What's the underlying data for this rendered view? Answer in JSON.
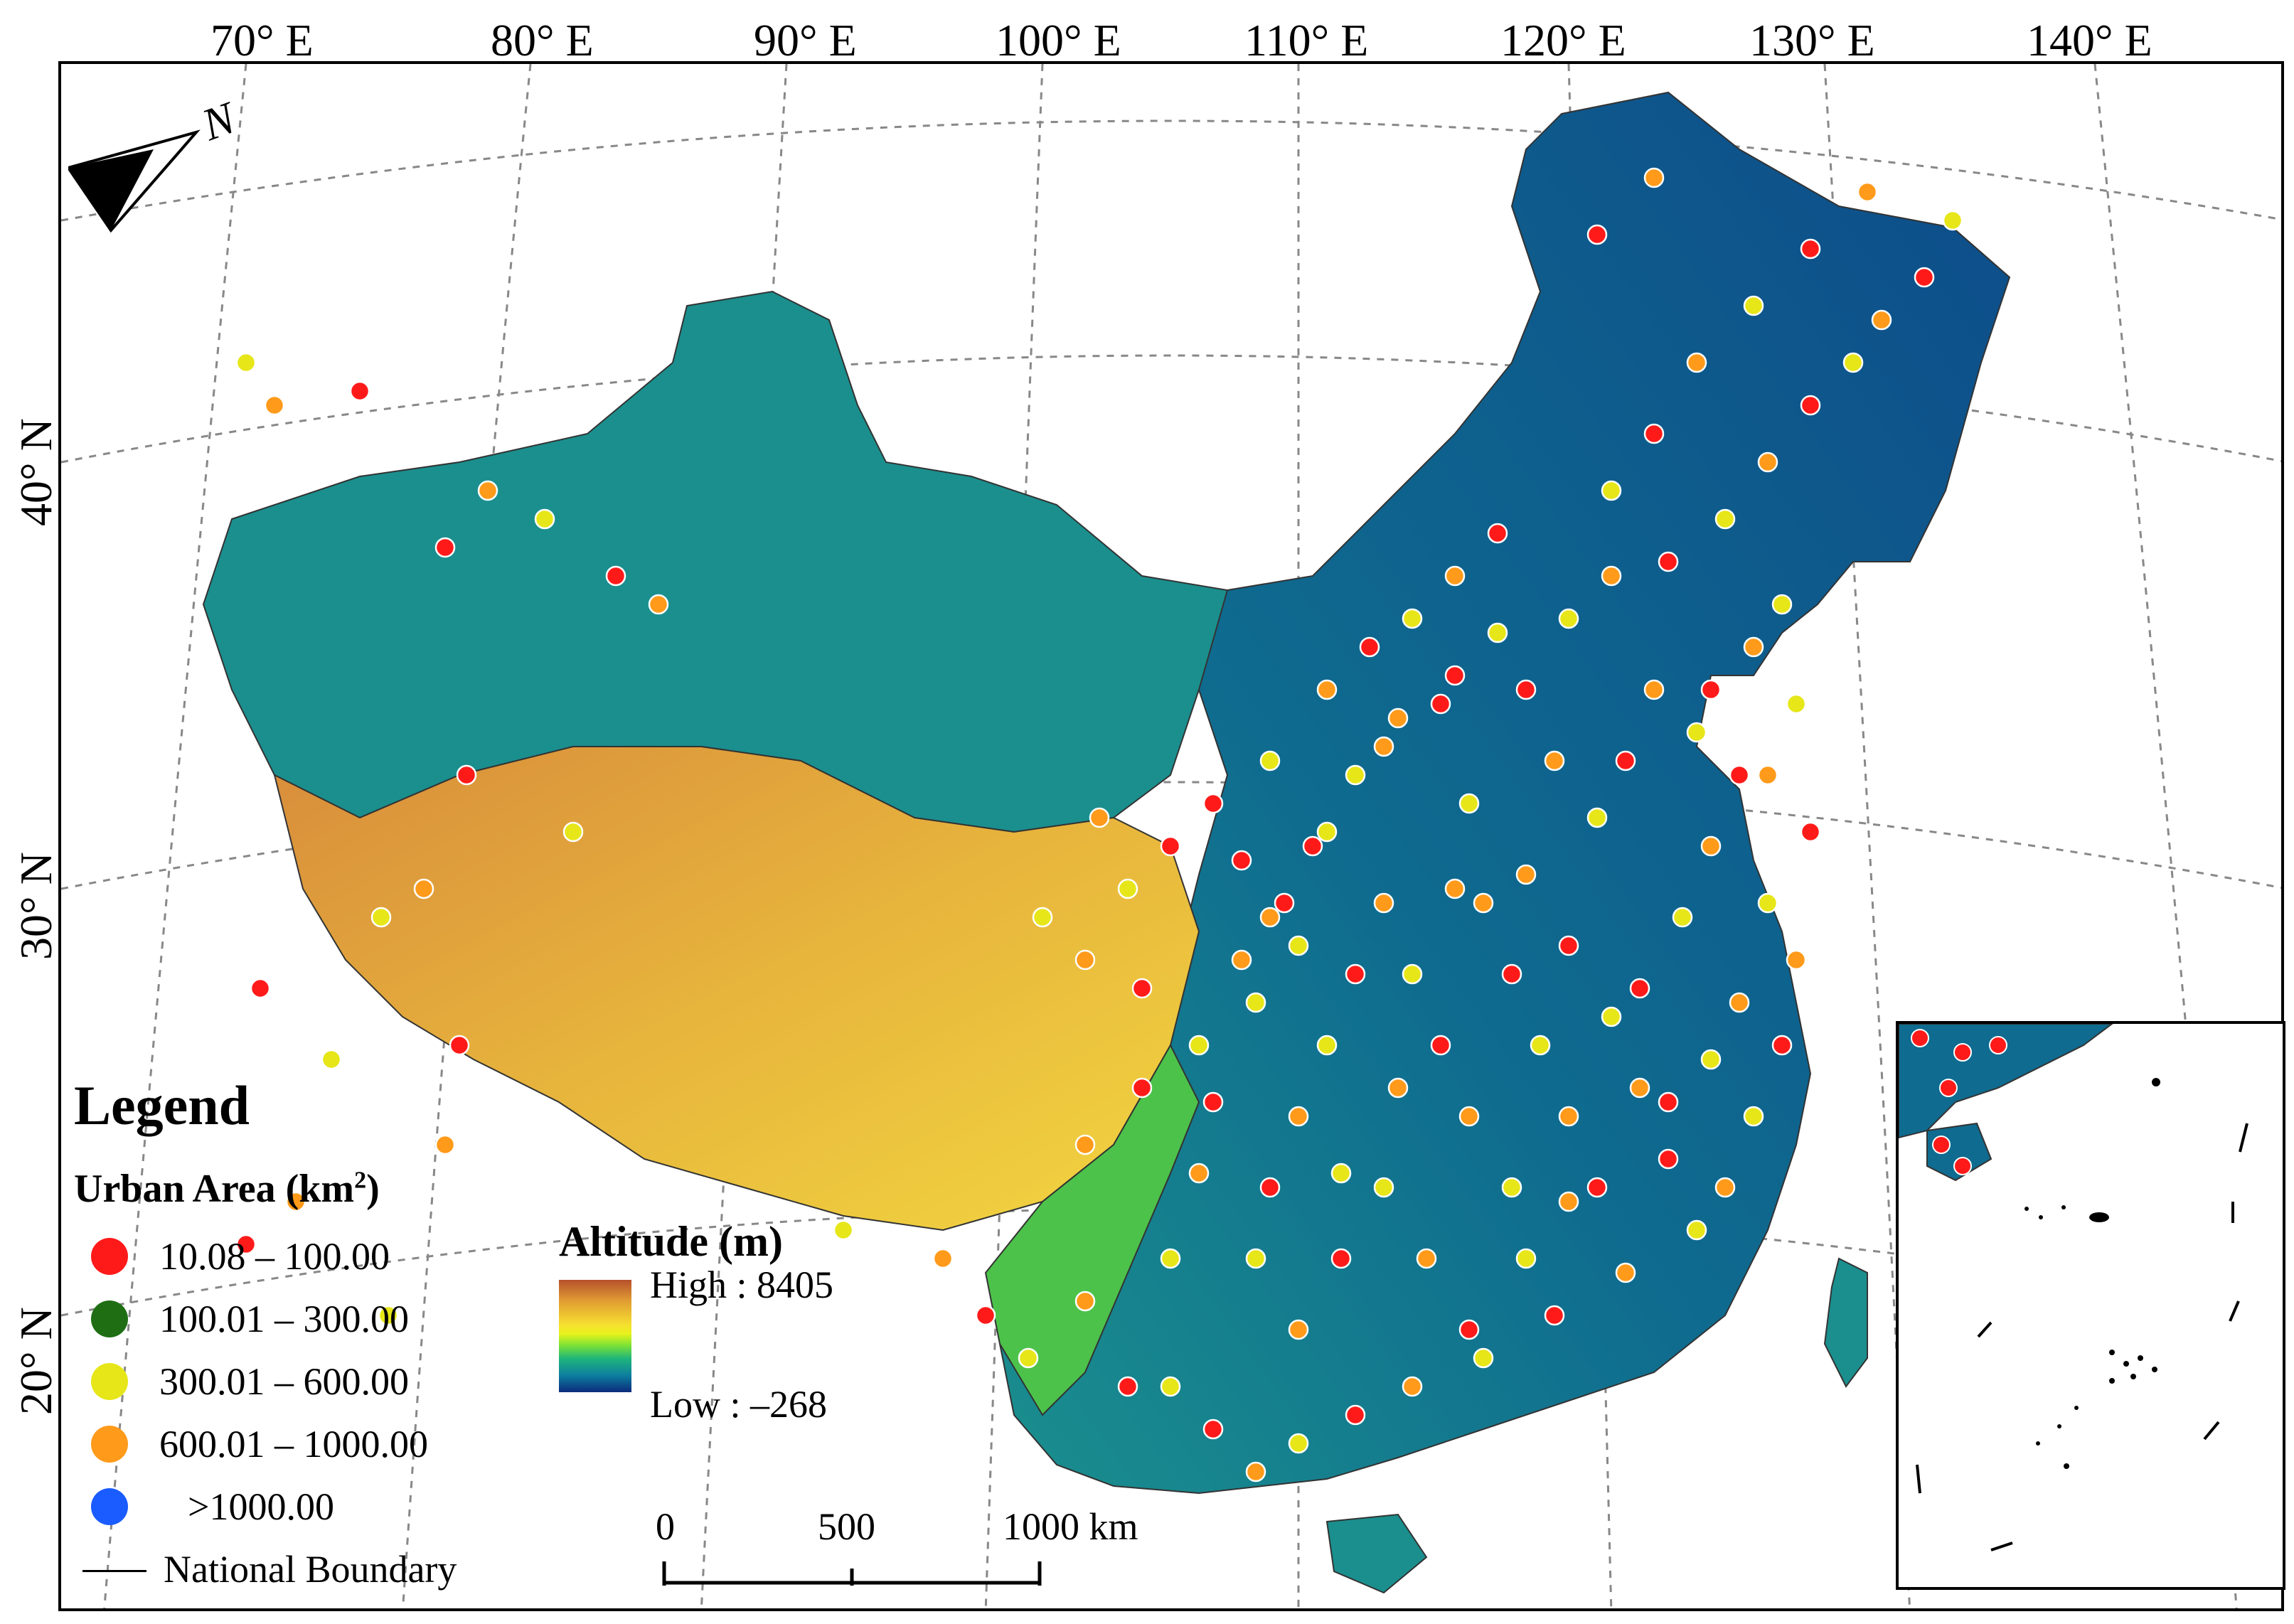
{
  "longitude_labels": [
    "70° E",
    "80° E",
    "90° E",
    "100° E",
    "110° E",
    "120° E",
    "130° E",
    "140° E"
  ],
  "latitude_labels": [
    "40° N",
    "30° N",
    "20° N"
  ],
  "north_arrow": {
    "label": "N",
    "icon": "north-arrow-icon"
  },
  "legend": {
    "title": "Legend",
    "urban_area_label": "Urban Area (km",
    "urban_area_superscript": "2",
    "urban_area_close": ")",
    "classes": [
      {
        "label": "10.08 – 100.00",
        "color": "#ff1a1a"
      },
      {
        "label": "100.01 – 300.00",
        "color": "#1f6e14"
      },
      {
        "label": "300.01 – 600.00",
        "color": "#e6e619"
      },
      {
        "label": "600.01 – 1000.00",
        "color": "#ff9a1a"
      },
      {
        "label": ">1000.00",
        "color": "#1a5cff"
      }
    ],
    "boundary_label": "National Boundary"
  },
  "altitude": {
    "title": "Altitude (m)",
    "high_label": "High : 8405",
    "low_label": "Low : –268"
  },
  "scale_bar": {
    "labels": [
      "0",
      "500",
      "1000 km"
    ]
  },
  "colors": {
    "lowland": "#0b4f8a",
    "plain": "#1a8f8e",
    "plateau": "#e3a63a",
    "highland": "#f1d23a"
  }
}
